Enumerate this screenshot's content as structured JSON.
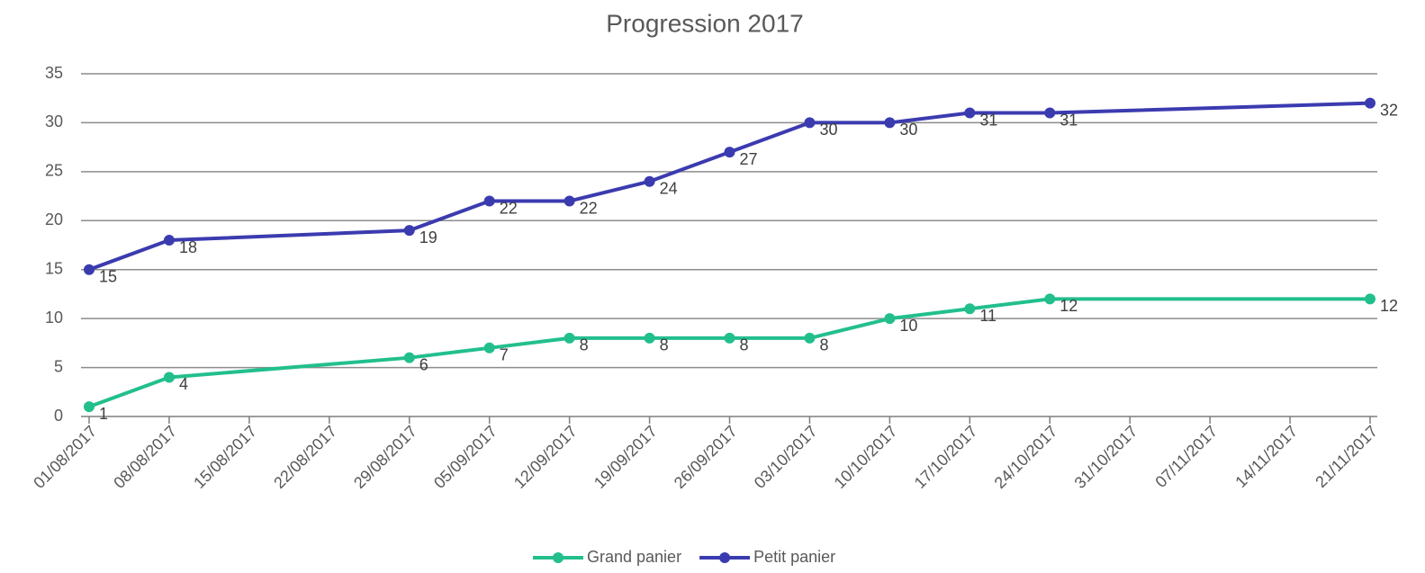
{
  "chart_data": {
    "type": "line",
    "title": "Progression 2017",
    "x": [
      "2017-08-01",
      "2017-08-08",
      "2017-08-29",
      "2017-09-05",
      "2017-09-12",
      "2017-09-19",
      "2017-09-26",
      "2017-10-03",
      "2017-10-10",
      "2017-10-17",
      "2017-10-24",
      "2017-11-21"
    ],
    "series": [
      {
        "name": "Grand panier",
        "color": "#22bf8d",
        "values": [
          1,
          4,
          6,
          7,
          8,
          8,
          8,
          8,
          10,
          11,
          12,
          12
        ]
      },
      {
        "name": "Petit panier",
        "color": "#3b3bb0",
        "values": [
          15,
          18,
          19,
          22,
          22,
          24,
          27,
          30,
          30,
          31,
          31,
          32
        ]
      }
    ],
    "xlim": [
      "2017-08-01",
      "2017-11-21"
    ],
    "xticks": [
      {
        "value": "2017-08-01",
        "label": "01/08/2017"
      },
      {
        "value": "2017-08-08",
        "label": "08/08/2017"
      },
      {
        "value": "2017-08-15",
        "label": "15/08/2017"
      },
      {
        "value": "2017-08-22",
        "label": "22/08/2017"
      },
      {
        "value": "2017-08-29",
        "label": "29/08/2017"
      },
      {
        "value": "2017-09-05",
        "label": "05/09/2017"
      },
      {
        "value": "2017-09-12",
        "label": "12/09/2017"
      },
      {
        "value": "2017-09-19",
        "label": "19/09/2017"
      },
      {
        "value": "2017-09-26",
        "label": "26/09/2017"
      },
      {
        "value": "2017-10-03",
        "label": "03/10/2017"
      },
      {
        "value": "2017-10-10",
        "label": "10/10/2017"
      },
      {
        "value": "2017-10-17",
        "label": "17/10/2017"
      },
      {
        "value": "2017-10-24",
        "label": "24/10/2017"
      },
      {
        "value": "2017-10-31",
        "label": "31/10/2017"
      },
      {
        "value": "2017-11-07",
        "label": "07/11/2017"
      },
      {
        "value": "2017-11-14",
        "label": "14/11/2017"
      },
      {
        "value": "2017-11-21",
        "label": "21/11/2017"
      }
    ],
    "ylim": [
      0,
      35
    ],
    "yticks": [
      0,
      5,
      10,
      15,
      20,
      25,
      30,
      35
    ],
    "grid": true,
    "legend": "bottom"
  }
}
